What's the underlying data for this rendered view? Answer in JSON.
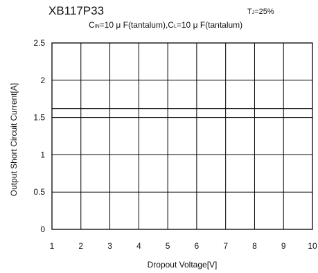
{
  "header": {
    "title": "XB117P33",
    "temp_prefix": "T",
    "temp_sub": "J",
    "temp_suffix": "=25%",
    "cond_c": "C",
    "cond_in_sub": "IN",
    "cond_in_rest": "=10 μ F(tantalum),C",
    "cond_l_sub": "L",
    "cond_l_rest": "=10 μ F(tantalum)"
  },
  "chart_data": {
    "type": "line",
    "xlabel": "Dropout Voltage[V]",
    "ylabel": "Output Short Circuit Current[A]",
    "xlim": [
      1,
      10
    ],
    "ylim": [
      0,
      2.5
    ],
    "xticks": [
      "1",
      "2",
      "3",
      "4",
      "5",
      "6",
      "7",
      "8",
      "9",
      "10"
    ],
    "yticks": [
      "0",
      "0.5",
      "1",
      "1.5",
      "2",
      "2.5"
    ],
    "grid": true,
    "series": [
      {
        "x": [
          1,
          10
        ],
        "values": [
          1.62,
          1.62
        ],
        "color": "#000000"
      }
    ]
  }
}
